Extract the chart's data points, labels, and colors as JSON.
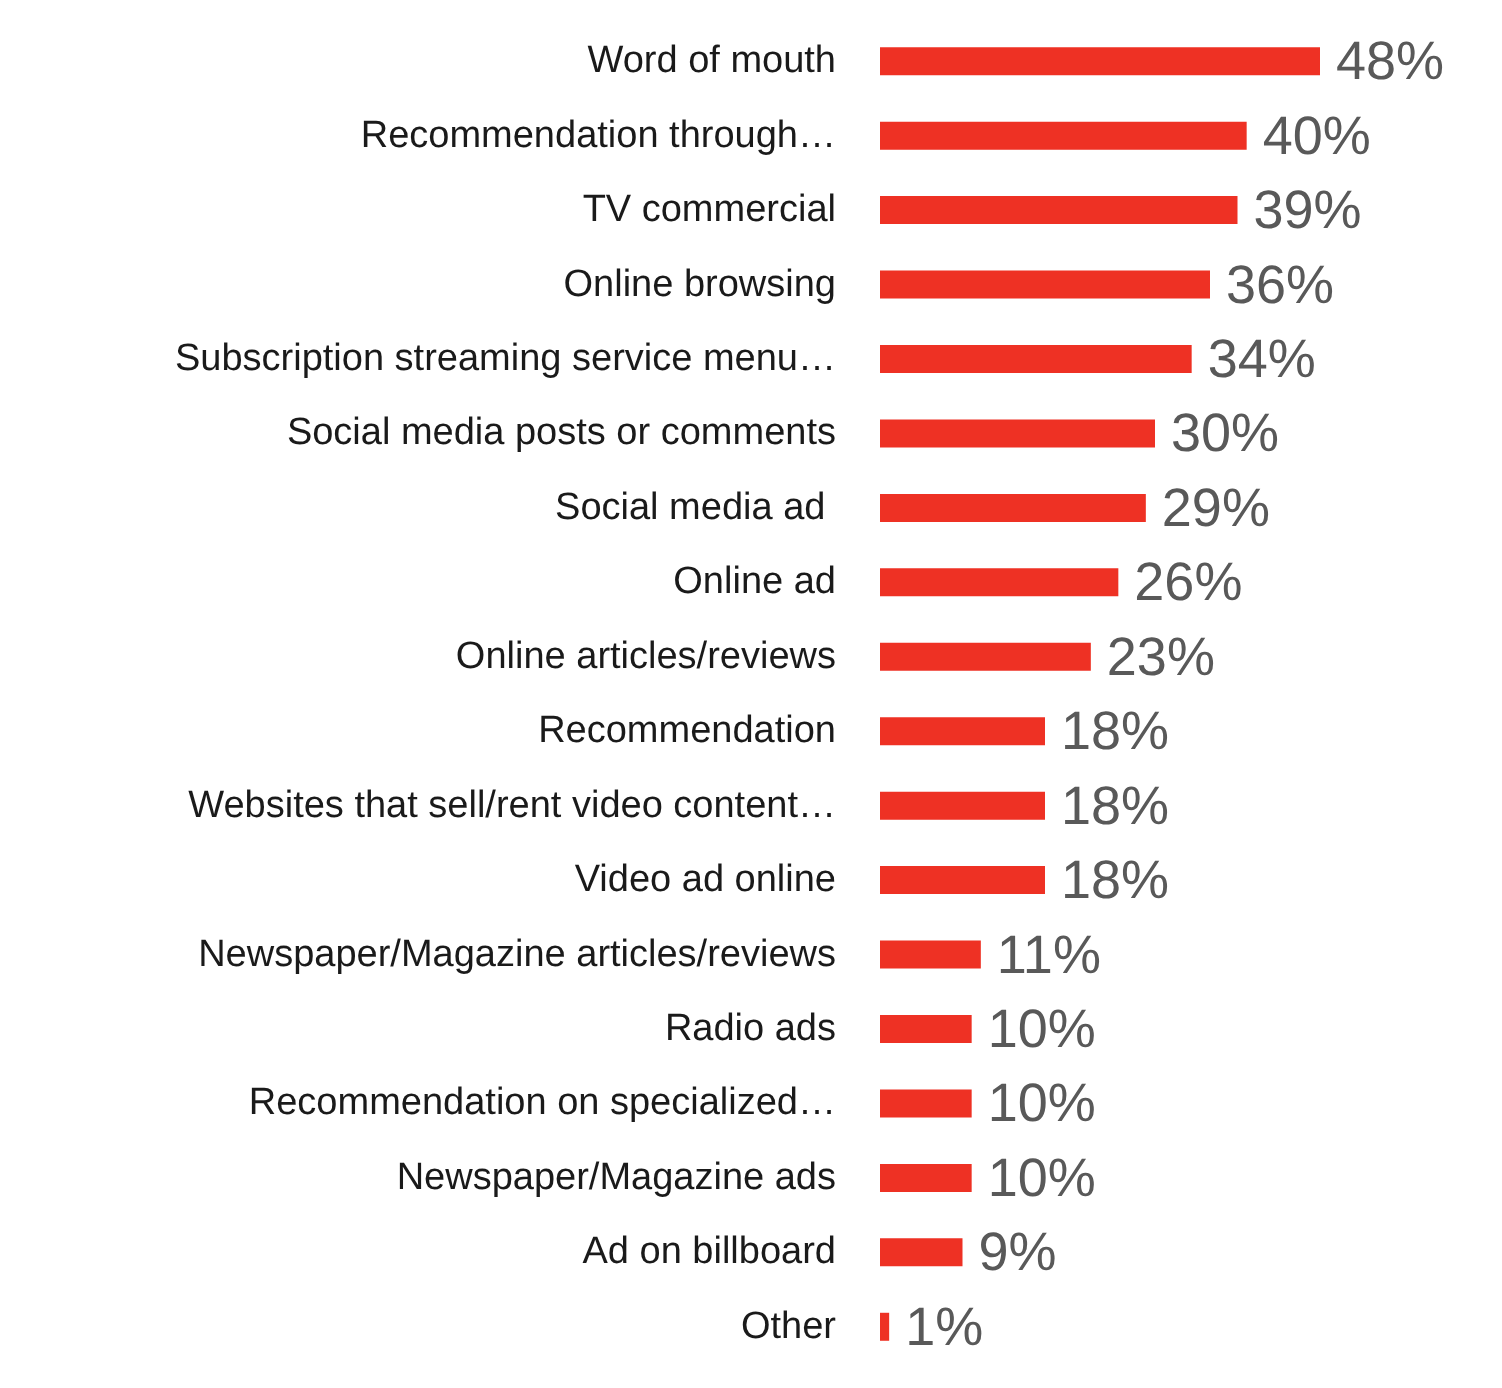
{
  "chart_data": {
    "type": "bar",
    "orientation": "horizontal",
    "categories": [
      "Word of mouth",
      "Recommendation through…",
      "TV commercial",
      "Online browsing",
      "Subscription streaming service menu…",
      "Social media posts or comments",
      "Social media ad ",
      "Online ad",
      "Online articles/reviews",
      "Recommendation",
      "Websites that sell/rent video content…",
      "Video ad online",
      "Newspaper/Magazine articles/reviews",
      "Radio ads",
      "Recommendation on specialized…",
      "Newspaper/Magazine ads",
      "Ad on billboard",
      "Other"
    ],
    "values": [
      48,
      40,
      39,
      36,
      34,
      30,
      29,
      26,
      23,
      18,
      18,
      18,
      11,
      10,
      10,
      10,
      9,
      1
    ],
    "value_labels": [
      "48%",
      "40%",
      "39%",
      "36%",
      "34%",
      "30%",
      "29%",
      "26%",
      "23%",
      "18%",
      "18%",
      "18%",
      "11%",
      "10%",
      "10%",
      "10%",
      "9%",
      "1%"
    ],
    "color": "#ee3124"
  }
}
